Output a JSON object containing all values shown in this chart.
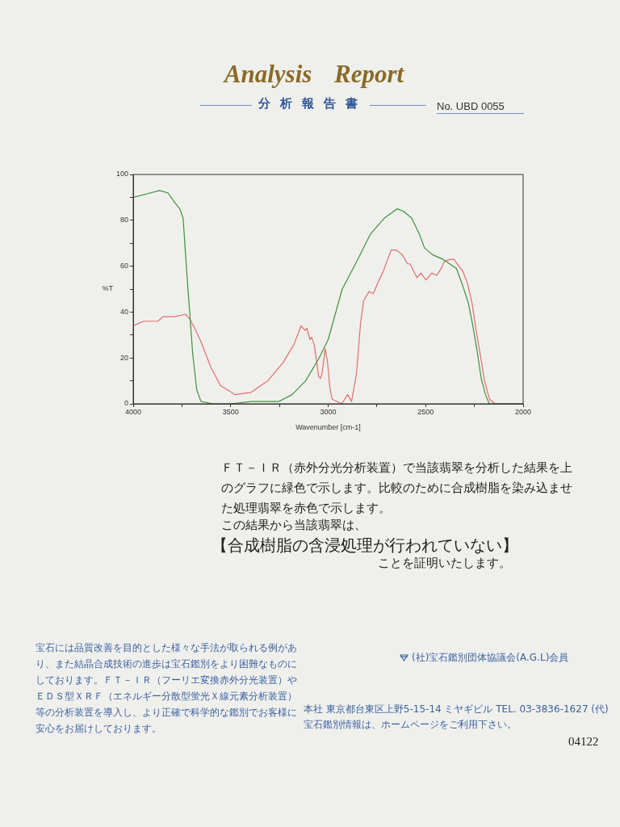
{
  "chart_data": {
    "type": "line",
    "title": "Analysis Report",
    "subtitle": "分析報告書",
    "xlabel": "Wavenumber [cm-1]",
    "ylabel": "%T",
    "xlim": [
      4000,
      2000
    ],
    "xticks": [
      4000,
      {
        "value": 3750,
        "label": null
      },
      3500,
      {
        "value": 3250,
        "label": null
      },
      3000,
      {
        "value": 2750,
        "label": null
      },
      2500,
      {
        "value": 2250,
        "label": null
      },
      2000
    ],
    "ylim": [
      0,
      100
    ],
    "yticks": [
      0,
      {
        "value": 10,
        "label": null
      },
      20,
      {
        "value": 30,
        "label": null
      },
      40,
      {
        "value": 50,
        "label": null
      },
      60,
      {
        "value": 70,
        "label": null
      },
      80,
      {
        "value": 90,
        "label": null
      },
      100
    ],
    "series": [
      {
        "color": "#3f8f3f",
        "x": [
          4000,
          3909,
          3866,
          3822,
          3789,
          3761,
          3744,
          3725,
          3695,
          3674,
          3652,
          3591,
          3500,
          3393,
          3254,
          3185,
          3116,
          3046,
          3000,
          2928,
          2854,
          2783,
          2711,
          2646,
          2614,
          2572,
          2532,
          2506,
          2465,
          2411,
          2342,
          2312,
          2281,
          2258,
          2236,
          2215,
          2193,
          2173,
          2125,
          2000
        ],
        "values": [
          90,
          92,
          93,
          92,
          88,
          85,
          81,
          57,
          22,
          6,
          1,
          0,
          0,
          1,
          1,
          4,
          10,
          20,
          28,
          50,
          62,
          74,
          81,
          85,
          84,
          81,
          74,
          68,
          65,
          63,
          59,
          52,
          44,
          34,
          23,
          11,
          4,
          0,
          0,
          0
        ]
      },
      {
        "color": "#e36d6b",
        "x": [
          4000,
          3946,
          3874,
          3846,
          3789,
          3732,
          3710,
          3685,
          3652,
          3602,
          3553,
          3476,
          3395,
          3310,
          3231,
          3175,
          3139,
          3118,
          3110,
          3093,
          3085,
          3072,
          3049,
          3040,
          3032,
          3015,
          3003,
          2991,
          2980,
          2930,
          2900,
          2880,
          2855,
          2834,
          2818,
          2790,
          2769,
          2744,
          2721,
          2677,
          2650,
          2620,
          2593,
          2580,
          2545,
          2524,
          2499,
          2468,
          2443,
          2420,
          2404,
          2375,
          2355,
          2329,
          2310,
          2287,
          2262,
          2241,
          2219,
          2198,
          2172,
          2144,
          2000
        ],
        "values": [
          34,
          36,
          36,
          38,
          38,
          39,
          37,
          33,
          27,
          16,
          8,
          4,
          5,
          10,
          18,
          26,
          34,
          32,
          33,
          28,
          29,
          26,
          12,
          11,
          13,
          24,
          18,
          7,
          2,
          0,
          4,
          1,
          13,
          35,
          45,
          49,
          48,
          53,
          57,
          67,
          67,
          65,
          61,
          61,
          55,
          57,
          54,
          57,
          56,
          59,
          62,
          63,
          63,
          60,
          58,
          53,
          44,
          32,
          21,
          10,
          2,
          0,
          0
        ]
      }
    ],
    "annotations": [
      "No. UBD 0055",
      "ＦＴ－ＩＲ（赤外分光分析装置）で当該翡翠を分析した結果を上のグラフに緑色で示します。比較のために合成樹脂を染み込ませた処理翡翠を赤色で示します。",
      "この結果から当該翡翠は、",
      "【合成樹脂の含浸処理が行われていない】",
      "ことを証明いたします。",
      "宝石には品質改善を目的とした様々な手法が取られる例があり、また結晶合成技術の進歩は宝石鑑別をより困難なものにしております。ＦＴ－ＩＲ（フーリエ変換赤外分光装置）やＥＤＳ型ＸＲＦ（エネルギー分散型蛍光Ｘ線元素分析装置）等の分析装置を導入し、より正確で科学的な鑑別でお客様に安心をお届けしております。",
      "(社)宝石鑑別団体協議会(A.G.L)会員",
      "本社 東京都台東区上野5-15-14 ミヤギビル TEL. 03-3836-1627 (代)",
      "宝石鑑別情報は、ホームページをご利用下さい。",
      "04122"
    ]
  }
}
